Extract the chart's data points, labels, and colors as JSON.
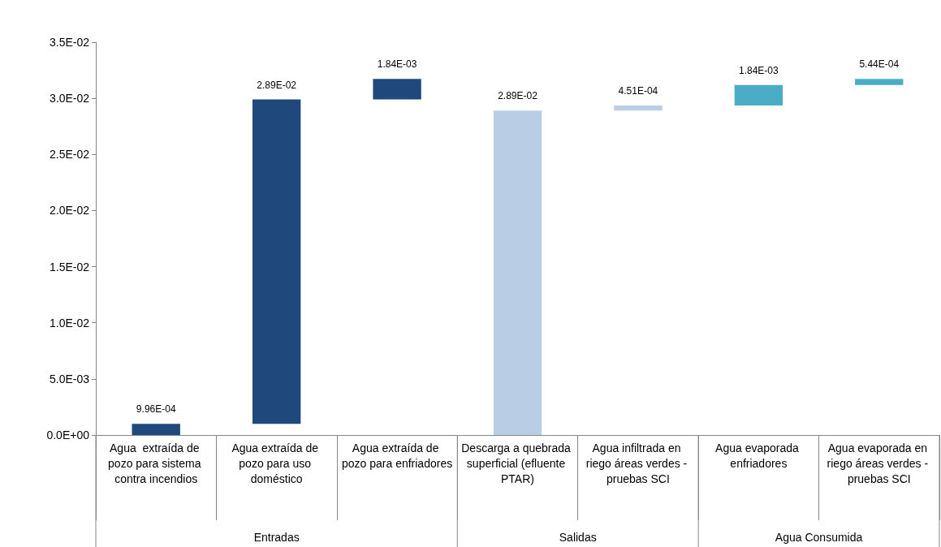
{
  "chart_data": {
    "type": "bar",
    "categories": [
      "Agua  extraída de pozo para sistema contra incendios",
      "Agua extraída de pozo para uso doméstico",
      "Agua extraída de pozo para enfriadores",
      "Descarga a quebrada superficial (efluente PTAR)",
      "Agua infiltrada en riego áreas verdes - pruebas SCI",
      "Agua evaporada enfriadores",
      "Agua evaporada en riego áreas verdes - pruebas SCI"
    ],
    "values": [
      0.000996,
      0.0289,
      0.00184,
      0.0289,
      0.000451,
      0.00184,
      0.000544
    ],
    "base": [
      0,
      0.000996,
      0.029896,
      0,
      0.0289,
      0.029351,
      0.031191
    ],
    "colors": [
      "#1f497d",
      "#1f497d",
      "#1f497d",
      "#b9cde5",
      "#b9cde5",
      "#4bacc6",
      "#4bacc6"
    ],
    "value_labels": [
      "9.96E-04",
      "2.89E-02",
      "1.84E-03",
      "2.89E-02",
      "4.51E-04",
      "1.84E-03",
      "5.44E-04"
    ],
    "ylim": [
      0,
      0.035
    ],
    "yticks": [
      {
        "value": 0,
        "label": "0.0E+00"
      },
      {
        "value": 0.005,
        "label": "5.0E-03"
      },
      {
        "value": 0.01,
        "label": "1.0E-02"
      },
      {
        "value": 0.015,
        "label": "1.5E-02"
      },
      {
        "value": 0.02,
        "label": "2.0E-02"
      },
      {
        "value": 0.025,
        "label": "2.5E-02"
      },
      {
        "value": 0.03,
        "label": "3.0E-02"
      },
      {
        "value": 0.035,
        "label": "3.5E-02"
      }
    ],
    "annotations": [
      "Entradas",
      "Salidas",
      "Agua Consumida"
    ],
    "grid": false
  }
}
